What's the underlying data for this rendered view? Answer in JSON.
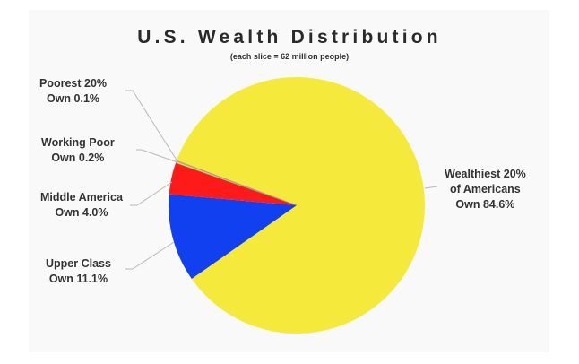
{
  "chart_data": {
    "type": "pie",
    "title": "U.S. Wealth Distribution",
    "subtitle": "(each slice = 62 million people)",
    "categories": [
      "Wealthiest 20% of Americans",
      "Upper Class",
      "Middle America",
      "Working Poor",
      "Poorest 20%"
    ],
    "values": [
      84.6,
      11.1,
      4.0,
      0.2,
      0.1
    ],
    "colors": [
      "#F5EA3C",
      "#1040F0",
      "#FF1A1A",
      "#F5EA3C",
      "#F5EA3C"
    ],
    "units": "%",
    "legend_position": "none (leader-line labels)"
  },
  "header": {
    "title": "U.S. Wealth Distribution",
    "subtitle": "(each slice = 62 million people)"
  },
  "labels": {
    "poorest": {
      "line1": "Poorest 20%",
      "line2": "Own 0.1%"
    },
    "working_poor": {
      "line1": "Working Poor",
      "line2": "Own 0.2%"
    },
    "middle": {
      "line1": "Middle America",
      "line2": "Own 4.0%"
    },
    "upper": {
      "line1": "Upper Class",
      "line2": "Own 11.1%"
    },
    "wealthiest": {
      "line1": "Wealthiest 20%",
      "line2": "of Americans",
      "line3": "Own 84.6%"
    }
  }
}
